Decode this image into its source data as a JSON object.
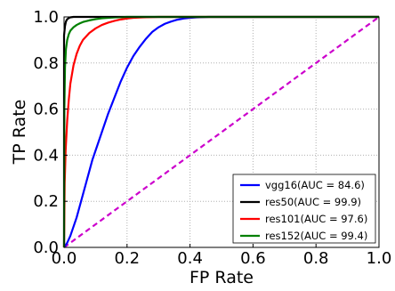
{
  "chart_data": {
    "type": "line",
    "xlabel": "FP Rate",
    "ylabel": "TP Rate",
    "xlim": [
      0.0,
      1.0
    ],
    "ylim": [
      0.0,
      1.0
    ],
    "xticks": [
      "0.0",
      "0.2",
      "0.4",
      "0.6",
      "0.8",
      "1.0"
    ],
    "yticks": [
      "0.0",
      "0.2",
      "0.4",
      "0.6",
      "0.8",
      "1.0"
    ],
    "grid": true,
    "legend_position": "bottom-right",
    "series": [
      {
        "name": "vgg16(AUC = 84.6)",
        "color": "#0000ff",
        "x": [
          0.0,
          0.01,
          0.02,
          0.03,
          0.04,
          0.05,
          0.06,
          0.07,
          0.08,
          0.09,
          0.1,
          0.12,
          0.14,
          0.16,
          0.18,
          0.2,
          0.22,
          0.24,
          0.26,
          0.28,
          0.3,
          0.32,
          0.34,
          0.36,
          0.38,
          0.4,
          0.42,
          0.44,
          0.46,
          0.5,
          0.6,
          0.8,
          1.0
        ],
        "y": [
          0.0,
          0.02,
          0.05,
          0.09,
          0.13,
          0.18,
          0.23,
          0.28,
          0.33,
          0.38,
          0.42,
          0.5,
          0.58,
          0.65,
          0.72,
          0.78,
          0.83,
          0.87,
          0.905,
          0.935,
          0.955,
          0.97,
          0.98,
          0.988,
          0.993,
          0.996,
          0.998,
          0.999,
          1.0,
          1.0,
          1.0,
          1.0,
          1.0
        ]
      },
      {
        "name": "res50(AUC = 99.9)",
        "color": "#000000",
        "x": [
          0.0,
          0.0,
          0.003,
          0.006,
          0.01,
          0.015,
          0.02,
          0.03,
          0.05,
          0.1,
          0.5,
          1.0
        ],
        "y": [
          0.0,
          0.92,
          0.96,
          0.98,
          0.99,
          0.995,
          0.998,
          1.0,
          1.0,
          1.0,
          1.0,
          1.0
        ]
      },
      {
        "name": "res101(AUC = 97.6)",
        "color": "#ff0000",
        "x": [
          0.0,
          0.002,
          0.005,
          0.01,
          0.015,
          0.02,
          0.03,
          0.04,
          0.05,
          0.06,
          0.08,
          0.1,
          0.12,
          0.14,
          0.16,
          0.18,
          0.2,
          0.22,
          0.25,
          0.3,
          0.4,
          0.6,
          1.0
        ],
        "y": [
          0.0,
          0.28,
          0.42,
          0.55,
          0.64,
          0.71,
          0.79,
          0.84,
          0.875,
          0.9,
          0.93,
          0.95,
          0.965,
          0.975,
          0.983,
          0.989,
          0.993,
          0.996,
          0.998,
          1.0,
          1.0,
          1.0,
          1.0
        ]
      },
      {
        "name": "res152(AUC = 99.4)",
        "color": "#008000",
        "x": [
          0.0,
          0.001,
          0.003,
          0.006,
          0.01,
          0.015,
          0.02,
          0.03,
          0.04,
          0.05,
          0.06,
          0.08,
          0.1,
          0.12,
          0.15,
          0.2,
          0.3,
          0.5,
          1.0
        ],
        "y": [
          0.0,
          0.6,
          0.78,
          0.86,
          0.9,
          0.925,
          0.94,
          0.955,
          0.965,
          0.972,
          0.978,
          0.985,
          0.99,
          0.994,
          0.997,
          1.0,
          1.0,
          1.0,
          1.0
        ]
      }
    ],
    "reference_line": {
      "color": "#cc00cc",
      "style": "dashed",
      "x": [
        0.0,
        1.0
      ],
      "y": [
        0.0,
        1.0
      ]
    }
  }
}
